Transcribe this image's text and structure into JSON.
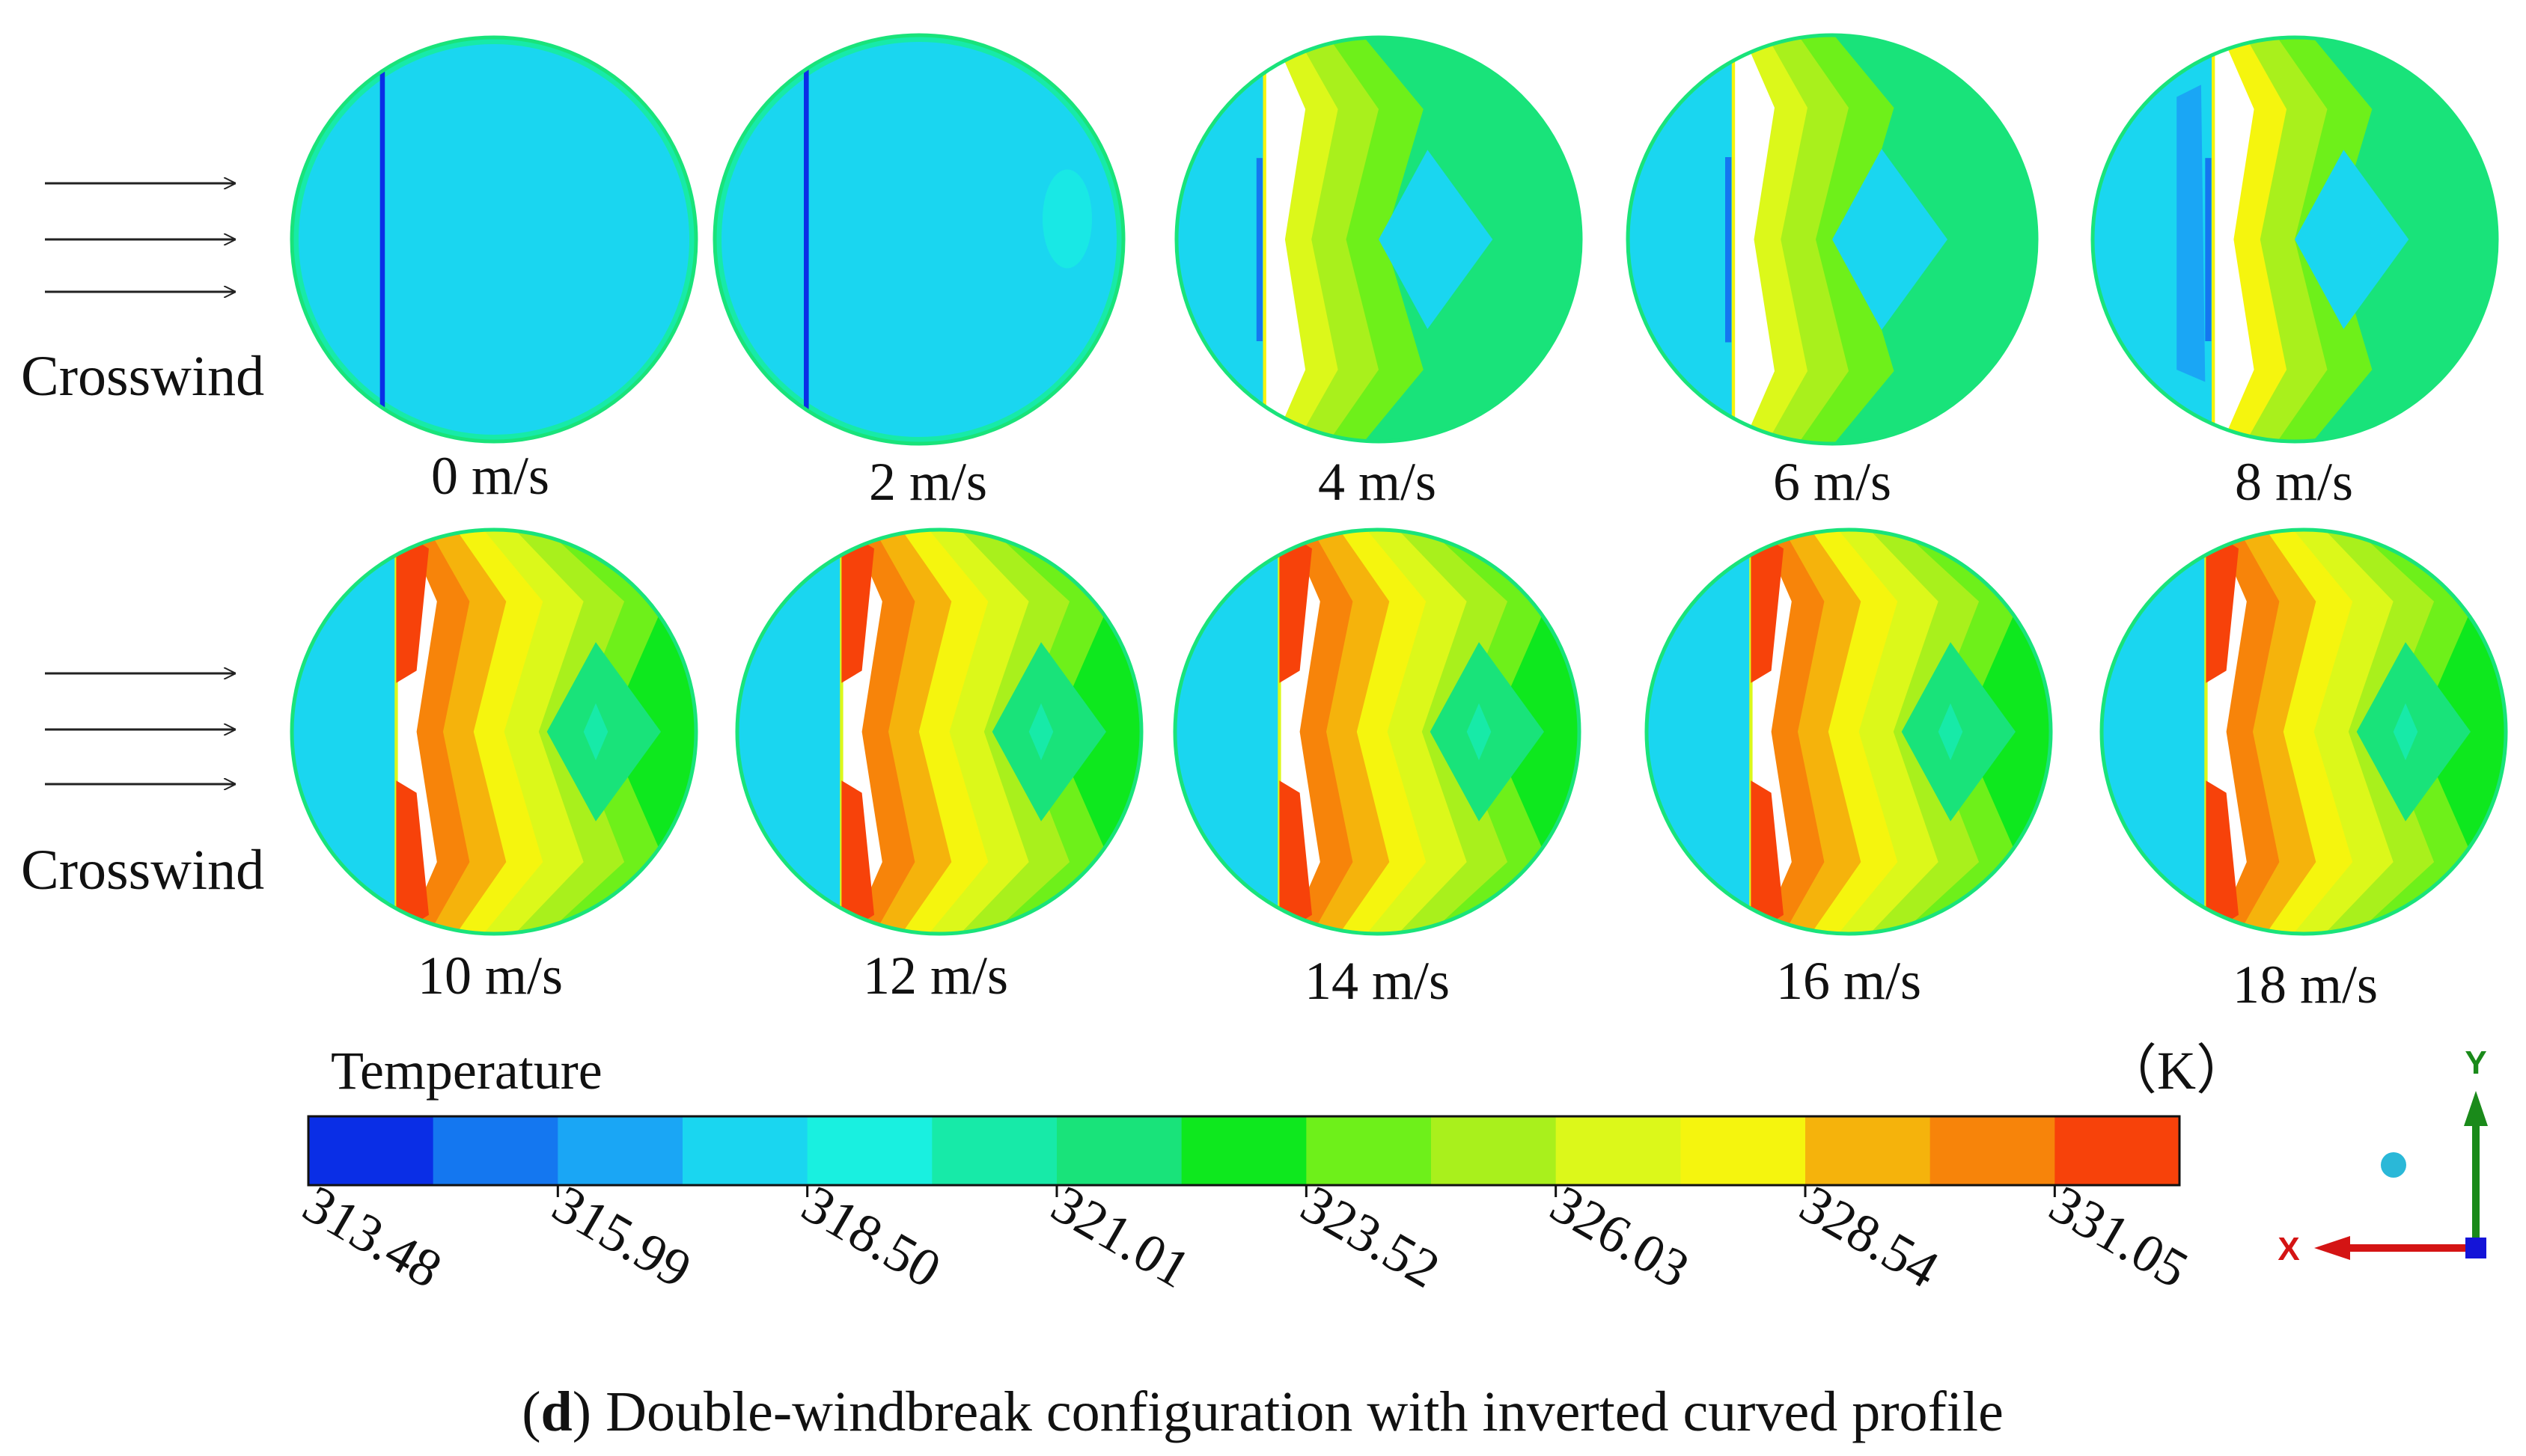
{
  "crosswind_label": "Crosswind",
  "rows": [
    {
      "cases": [
        {
          "label": "0 m/s",
          "speed": 0
        },
        {
          "label": "2 m/s",
          "speed": 2
        },
        {
          "label": "4 m/s",
          "speed": 4
        },
        {
          "label": "6 m/s",
          "speed": 6
        },
        {
          "label": "8 m/s",
          "speed": 8
        }
      ]
    },
    {
      "cases": [
        {
          "label": "10 m/s",
          "speed": 10
        },
        {
          "label": "12 m/s",
          "speed": 12
        },
        {
          "label": "14 m/s",
          "speed": 14
        },
        {
          "label": "16 m/s",
          "speed": 16
        },
        {
          "label": "18 m/s",
          "speed": 18
        }
      ]
    }
  ],
  "legend": {
    "title": "Temperature",
    "unit": "（K）",
    "colors": [
      "#0a2ee6",
      "#1477f0",
      "#1aa6f5",
      "#1ad6f0",
      "#19f0e0",
      "#17eaa8",
      "#19e37a",
      "#0ee81e",
      "#6ef01a",
      "#a9f01c",
      "#dcf81a",
      "#f5f50e",
      "#f5b30c",
      "#f7840a",
      "#f7420a"
    ],
    "ticks": [
      "313.48",
      "315.99",
      "318.50",
      "321.01",
      "323.52",
      "326.03",
      "328.54",
      "331.05"
    ]
  },
  "axes": {
    "x": "X",
    "y": "Y"
  },
  "caption": {
    "letter": "d",
    "text": ") Double-windbreak configuration with inverted curved profile",
    "open": "("
  }
}
